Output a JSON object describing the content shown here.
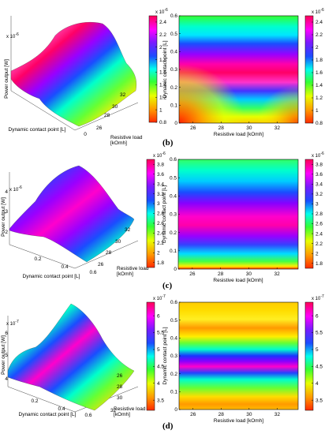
{
  "figure": {
    "panel_letters": [
      "(b)",
      "(c)",
      "(d)"
    ]
  },
  "chart_data": [
    {
      "id": "b-3d",
      "type": "surface",
      "zlabel": "Power output [W]",
      "xlabel": "Dynamic contact point [L]",
      "ylabel": "Resistive load [kOhm]",
      "zlabel_text": "Power output [W]",
      "xlabel_text": "Dynamic contact point [L]",
      "ylabel_text": "Resistive load\n[kOmh]",
      "z_exponent": "x 10",
      "z_exponent_power": "-6",
      "x_ticks": [
        "0"
      ],
      "y_ticks": [
        "26",
        "28",
        "30",
        "32"
      ],
      "z_ticks": [],
      "colorbar": {
        "ticks": [
          "2.4",
          "2.2",
          "2",
          "1.8",
          "1.6",
          "1.4",
          "1.2",
          "1",
          "0.8"
        ],
        "exponent": "x 10",
        "exponent_power": "-6",
        "range": [
          0.8,
          2.5
        ]
      }
    },
    {
      "id": "b-2d",
      "type": "heatmap",
      "xlabel": "Resistive load [kOmh]",
      "ylabel": "Dynamic contact point [L]",
      "x_ticks": [
        "26",
        "28",
        "30",
        "32"
      ],
      "y_ticks": [
        "0",
        "0.1",
        "0.2",
        "0.3",
        "0.4",
        "0.5",
        "0.6"
      ],
      "xlim": [
        25,
        33.5
      ],
      "ylim": [
        0,
        0.6
      ],
      "colorbar": {
        "ticks": [
          "2.4",
          "2.2",
          "2",
          "1.8",
          "1.6",
          "1.4",
          "1.2",
          "1",
          "0.8"
        ],
        "exponent": "x 10",
        "exponent_power": "-6",
        "range": [
          0.8,
          2.5
        ]
      },
      "peak_y": 0.33
    },
    {
      "id": "c-3d",
      "type": "surface",
      "zlabel_text": "Power output [W]",
      "xlabel_text": "Dynamic contact point [L]",
      "ylabel_text": "Resistive load\n[kOmh]",
      "z_exponent": "x 10",
      "z_exponent_power": "-6",
      "x_ticks": [
        "0.2",
        "0.4",
        "0.6"
      ],
      "y_ticks": [
        "26",
        "28",
        "30",
        "32"
      ],
      "z_ticks": [
        "4",
        "3",
        "2"
      ],
      "colorbar": {
        "ticks": [
          "3.8",
          "3.6",
          "3.4",
          "3.2",
          "3",
          "2.8",
          "2.6",
          "2.4",
          "2.2",
          "2",
          "1.8"
        ],
        "exponent": "x 10",
        "exponent_power": "-6",
        "range": [
          1.7,
          3.9
        ]
      }
    },
    {
      "id": "c-2d",
      "type": "heatmap",
      "xlabel": "Resistive load [kOmh]",
      "ylabel": "Dynamic contact point [L]",
      "x_ticks": [
        "26",
        "28",
        "30",
        "32"
      ],
      "y_ticks": [
        "0",
        "0.1",
        "0.2",
        "0.3",
        "0.4",
        "0.5",
        "0.6"
      ],
      "xlim": [
        25,
        33.5
      ],
      "ylim": [
        0,
        0.6
      ],
      "colorbar": {
        "ticks": [
          "3.8",
          "3.6",
          "3.4",
          "3.2",
          "3",
          "2.8",
          "2.6",
          "2.4",
          "2.2",
          "2",
          "1.8"
        ],
        "exponent": "x 10",
        "exponent_power": "-6",
        "range": [
          1.7,
          3.9
        ]
      },
      "peak_y": 0.27
    },
    {
      "id": "d-3d",
      "type": "surface",
      "zlabel_text": "Power output [W]",
      "xlabel_text": "Dynamic contact point [L]",
      "ylabel_text": "Resistive load\n[kOmh]",
      "z_exponent": "x 10",
      "z_exponent_power": "-7",
      "x_ticks": [
        "0.2",
        "0.4",
        "0.6"
      ],
      "y_ticks": [
        "26",
        "28",
        "30",
        "32"
      ],
      "z_ticks": [
        "6",
        "5",
        "4"
      ],
      "colorbar": {
        "ticks": [
          "6",
          "5.5",
          "5",
          "4.5",
          "4",
          "3.5"
        ],
        "exponent": "x 10",
        "exponent_power": "-7",
        "range": [
          3.2,
          6.4
        ]
      }
    },
    {
      "id": "d-2d",
      "type": "heatmap",
      "xlabel": "Resistive load [kOmh]",
      "ylabel": "Dynamic contact point [L]",
      "x_ticks": [
        "26",
        "28",
        "30",
        "32"
      ],
      "y_ticks": [
        "0",
        "0.1",
        "0.2",
        "0.3",
        "0.4",
        "0.5",
        "0.6"
      ],
      "xlim": [
        25,
        33.5
      ],
      "ylim": [
        0,
        0.6
      ],
      "colorbar": {
        "ticks": [
          "6",
          "5.5",
          "5",
          "4.5",
          "4",
          "3.5"
        ],
        "exponent": "x 10",
        "exponent_power": "-7",
        "range": [
          3.2,
          6.4
        ]
      },
      "peak_y": 0.2
    }
  ]
}
